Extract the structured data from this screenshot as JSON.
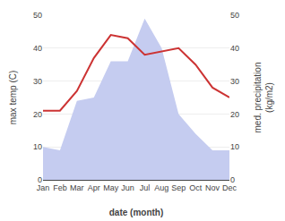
{
  "chart_data": {
    "type": "line",
    "xlabel": "date (month)",
    "ylabel": "max temp (C)",
    "y2label": "med. precipitation\n(kg/m2)",
    "categories": [
      "Jan",
      "Feb",
      "Mar",
      "Apr",
      "May",
      "Jun",
      "Jul",
      "Aug",
      "Sep",
      "Oct",
      "Nov",
      "Dec"
    ],
    "series": [
      {
        "type": "area",
        "color": "#c5ccf0",
        "axis": "y2",
        "values": [
          10,
          9,
          24,
          25,
          36,
          36,
          49,
          40,
          20,
          14,
          9,
          9
        ]
      },
      {
        "type": "line",
        "color": "#cc3333",
        "values": [
          21,
          21,
          27,
          37,
          44,
          43,
          38,
          39,
          40,
          35,
          28,
          25
        ]
      }
    ],
    "ylim": [
      0,
      50
    ],
    "yticks": [
      0,
      10,
      20,
      30,
      40,
      50
    ],
    "y2lim": [
      0,
      50
    ],
    "y2ticks": [
      0,
      10,
      20,
      30,
      40,
      50
    ],
    "grid": true
  }
}
